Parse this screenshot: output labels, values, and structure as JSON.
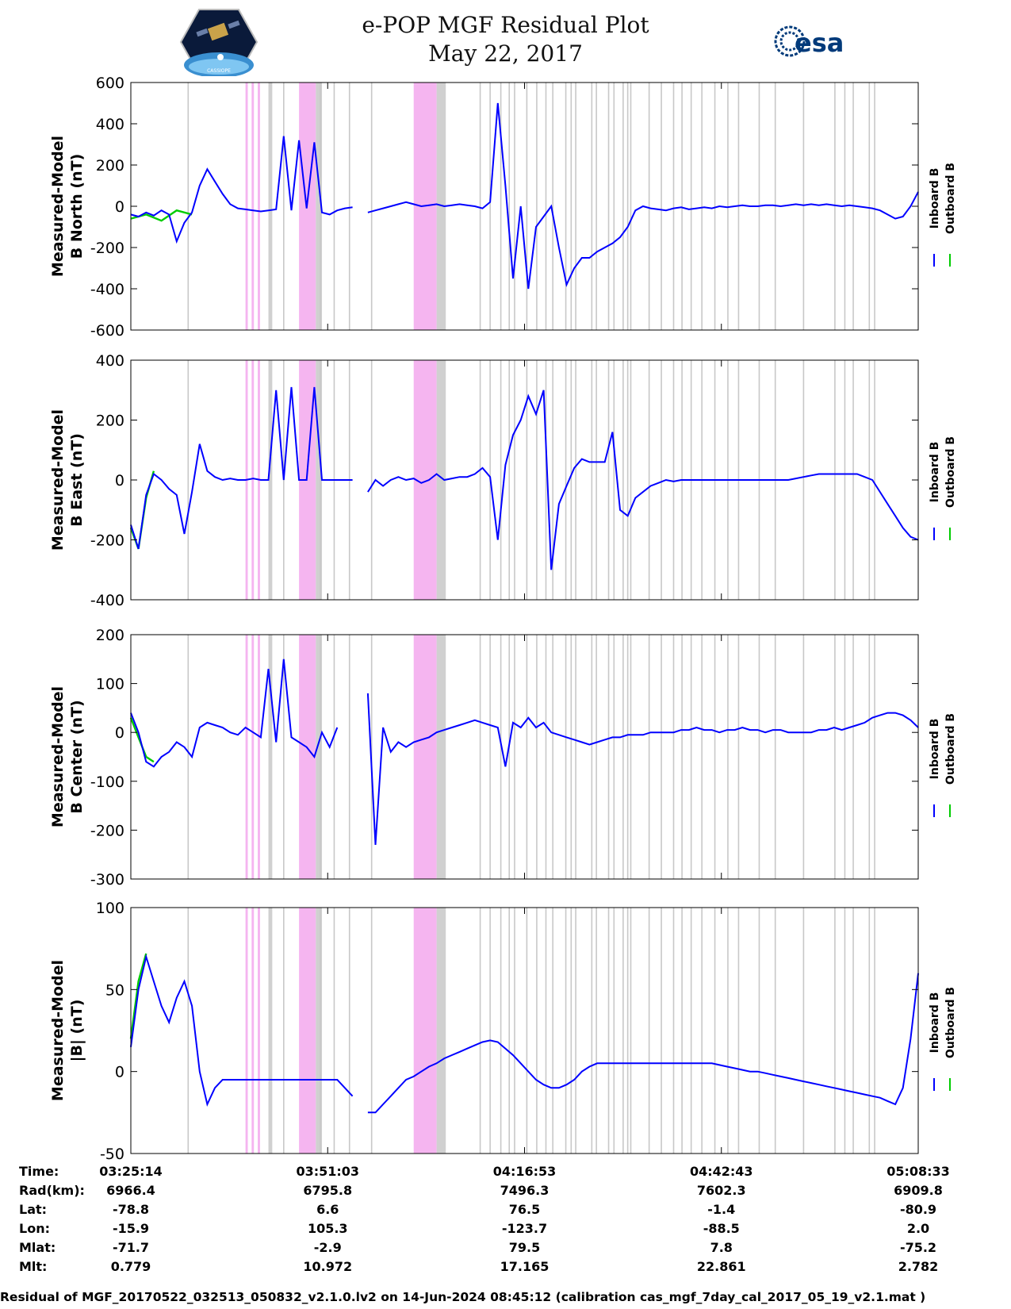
{
  "header": {
    "title": "e-POP MGF Residual Plot",
    "date": "May 22, 2017",
    "esa_logo_text": "esa",
    "cassiope_logo_text": "CASSIOPE"
  },
  "colors": {
    "inboard": "#0000ff",
    "outboard": "#00cc00",
    "pink_band": "#f5b5f0",
    "gray_band": "#d0d0d0",
    "gray_line": "#c8c8c8"
  },
  "chart_data": [
    {
      "type": "line",
      "ylabel_line1": "Measured-Model",
      "ylabel_line2": "B North (nT)",
      "ylim": [
        -600,
        600
      ],
      "yticks": [
        600,
        400,
        200,
        0,
        -200,
        -400,
        -600
      ],
      "series": [
        {
          "name": "Inboard B",
          "color": "#0000ff",
          "x": [
            0,
            1,
            2,
            3,
            4,
            5,
            6,
            7,
            8,
            9,
            10,
            11,
            12,
            13,
            14,
            15,
            16,
            17,
            18,
            19,
            20,
            21,
            22,
            23,
            24,
            25,
            26,
            27,
            28,
            29,
            30,
            31,
            32,
            33,
            34,
            35,
            36,
            37,
            38,
            39,
            40,
            41,
            42,
            43,
            44,
            45,
            46,
            47,
            48,
            49,
            50,
            51,
            52,
            53,
            54,
            55,
            56,
            57,
            58,
            59,
            60,
            61,
            62,
            63,
            64,
            65,
            66,
            67,
            68,
            69,
            70,
            71,
            72,
            73,
            74,
            75,
            76,
            77,
            78,
            79,
            80,
            81,
            82,
            83,
            84,
            85,
            86,
            87,
            88,
            89,
            90,
            91,
            92,
            93,
            94,
            95,
            96,
            97,
            98,
            99,
            100,
            101,
            102,
            103
          ],
          "y": [
            -40,
            -50,
            -30,
            -45,
            -20,
            -40,
            -170,
            -80,
            -30,
            100,
            180,
            120,
            60,
            10,
            -10,
            -15,
            -20,
            -25,
            -20,
            -15,
            340,
            -20,
            320,
            -10,
            310,
            -30,
            -40,
            -20,
            -10,
            -5,
            null,
            -30,
            -20,
            -10,
            0,
            10,
            20,
            10,
            0,
            5,
            10,
            0,
            5,
            10,
            5,
            0,
            -10,
            20,
            500,
            100,
            -350,
            0,
            -400,
            -100,
            -50,
            0,
            -200,
            -380,
            -300,
            -250,
            -250,
            -220,
            -200,
            -180,
            -150,
            -100,
            -20,
            0,
            -10,
            -15,
            -20,
            -10,
            -5,
            -15,
            -10,
            -5,
            -10,
            0,
            -5,
            0,
            5,
            0,
            0,
            5,
            5,
            0,
            5,
            10,
            5,
            10,
            5,
            10,
            5,
            0,
            5,
            0,
            -5,
            -10,
            -20,
            -40,
            -60,
            -50,
            0,
            70
          ]
        },
        {
          "name": "Outboard B",
          "color": "#00cc00",
          "x": [
            0,
            2,
            4,
            6,
            8
          ],
          "y": [
            -60,
            -40,
            -70,
            -20,
            -40
          ]
        }
      ]
    },
    {
      "type": "line",
      "ylabel_line1": "Measured-Model",
      "ylabel_line2": "B East (nT)",
      "ylim": [
        -400,
        400
      ],
      "yticks": [
        400,
        200,
        0,
        -200,
        -400
      ],
      "series": [
        {
          "name": "Inboard B",
          "color": "#0000ff",
          "x": [
            0,
            1,
            2,
            3,
            4,
            5,
            6,
            7,
            8,
            9,
            10,
            11,
            12,
            13,
            14,
            15,
            16,
            17,
            18,
            19,
            20,
            21,
            22,
            23,
            24,
            25,
            26,
            27,
            28,
            29,
            30,
            31,
            32,
            33,
            34,
            35,
            36,
            37,
            38,
            39,
            40,
            41,
            42,
            43,
            44,
            45,
            46,
            47,
            48,
            49,
            50,
            51,
            52,
            53,
            54,
            55,
            56,
            57,
            58,
            59,
            60,
            61,
            62,
            63,
            64,
            65,
            66,
            67,
            68,
            69,
            70,
            71,
            72,
            73,
            74,
            75,
            76,
            77,
            78,
            79,
            80,
            81,
            82,
            83,
            84,
            85,
            86,
            87,
            88,
            89,
            90,
            91,
            92,
            93,
            94,
            95,
            96,
            97,
            98,
            99,
            100,
            101,
            102,
            103
          ],
          "y": [
            -150,
            -230,
            -50,
            20,
            0,
            -30,
            -50,
            -180,
            -40,
            120,
            30,
            10,
            0,
            5,
            0,
            0,
            5,
            0,
            0,
            300,
            0,
            310,
            0,
            0,
            310,
            0,
            0,
            0,
            0,
            0,
            null,
            -40,
            0,
            -20,
            0,
            10,
            0,
            5,
            -10,
            0,
            20,
            0,
            5,
            10,
            10,
            20,
            40,
            10,
            -200,
            50,
            150,
            200,
            280,
            220,
            300,
            -300,
            -80,
            -20,
            40,
            70,
            60,
            60,
            60,
            160,
            -100,
            -120,
            -60,
            -40,
            -20,
            -10,
            0,
            -5,
            0,
            0,
            0,
            0,
            0,
            0,
            0,
            0,
            0,
            0,
            0,
            0,
            0,
            0,
            0,
            5,
            10,
            15,
            20,
            20,
            20,
            20,
            20,
            20,
            10,
            0,
            -40,
            -80,
            -120,
            -160,
            -190,
            -200
          ]
        },
        {
          "name": "Outboard B",
          "color": "#00cc00",
          "x": [
            0,
            1,
            2,
            3
          ],
          "y": [
            -160,
            -230,
            -60,
            30
          ]
        }
      ]
    },
    {
      "type": "line",
      "ylabel_line1": "Measured-Model",
      "ylabel_line2": "B Center (nT)",
      "ylim": [
        -300,
        200
      ],
      "yticks": [
        200,
        100,
        0,
        -100,
        -200,
        -300
      ],
      "series": [
        {
          "name": "Inboard B",
          "color": "#0000ff",
          "x": [
            0,
            1,
            2,
            3,
            4,
            5,
            6,
            7,
            8,
            9,
            10,
            11,
            12,
            13,
            14,
            15,
            16,
            17,
            18,
            19,
            20,
            21,
            22,
            23,
            24,
            25,
            26,
            27,
            28,
            29,
            30,
            31,
            32,
            33,
            34,
            35,
            36,
            37,
            38,
            39,
            40,
            41,
            42,
            43,
            44,
            45,
            46,
            47,
            48,
            49,
            50,
            51,
            52,
            53,
            54,
            55,
            56,
            57,
            58,
            59,
            60,
            61,
            62,
            63,
            64,
            65,
            66,
            67,
            68,
            69,
            70,
            71,
            72,
            73,
            74,
            75,
            76,
            77,
            78,
            79,
            80,
            81,
            82,
            83,
            84,
            85,
            86,
            87,
            88,
            89,
            90,
            91,
            92,
            93,
            94,
            95,
            96,
            97,
            98,
            99,
            100,
            101,
            102,
            103
          ],
          "y": [
            40,
            0,
            -60,
            -70,
            -50,
            -40,
            -20,
            -30,
            -50,
            10,
            20,
            15,
            10,
            0,
            -5,
            10,
            0,
            -10,
            130,
            -20,
            150,
            -10,
            -20,
            -30,
            -50,
            0,
            -30,
            10,
            null,
            null,
            null,
            80,
            -230,
            10,
            -40,
            -20,
            -30,
            -20,
            -15,
            -10,
            0,
            5,
            10,
            15,
            20,
            25,
            20,
            15,
            10,
            -70,
            20,
            10,
            30,
            10,
            20,
            0,
            -5,
            -10,
            -15,
            -20,
            -25,
            -20,
            -15,
            -10,
            -10,
            -5,
            -5,
            -5,
            0,
            0,
            0,
            0,
            5,
            5,
            10,
            5,
            5,
            0,
            5,
            5,
            10,
            5,
            5,
            0,
            5,
            5,
            0,
            0,
            0,
            0,
            5,
            5,
            10,
            5,
            10,
            15,
            20,
            30,
            35,
            40,
            40,
            35,
            25,
            10
          ]
        },
        {
          "name": "Outboard B",
          "color": "#00cc00",
          "x": [
            0,
            1,
            2,
            3
          ],
          "y": [
            30,
            -10,
            -50,
            -60
          ]
        }
      ]
    },
    {
      "type": "line",
      "ylabel_line1": "Measured-Model",
      "ylabel_line2": "|B| (nT)",
      "ylim": [
        -50,
        100
      ],
      "yticks": [
        100,
        50,
        0,
        -50
      ],
      "series": [
        {
          "name": "Inboard B",
          "color": "#0000ff",
          "x": [
            0,
            1,
            2,
            3,
            4,
            5,
            6,
            7,
            8,
            9,
            10,
            11,
            12,
            13,
            14,
            15,
            16,
            17,
            18,
            19,
            20,
            21,
            22,
            23,
            24,
            25,
            26,
            27,
            28,
            29,
            30,
            31,
            32,
            33,
            34,
            35,
            36,
            37,
            38,
            39,
            40,
            41,
            42,
            43,
            44,
            45,
            46,
            47,
            48,
            49,
            50,
            51,
            52,
            53,
            54,
            55,
            56,
            57,
            58,
            59,
            60,
            61,
            62,
            63,
            64,
            65,
            66,
            67,
            68,
            69,
            70,
            71,
            72,
            73,
            74,
            75,
            76,
            77,
            78,
            79,
            80,
            81,
            82,
            83,
            84,
            85,
            86,
            87,
            88,
            89,
            90,
            91,
            92,
            93,
            94,
            95,
            96,
            97,
            98,
            99,
            100,
            101,
            102,
            103
          ],
          "y": [
            15,
            50,
            70,
            55,
            40,
            30,
            45,
            55,
            40,
            0,
            -20,
            -10,
            -5,
            -5,
            -5,
            -5,
            -5,
            -5,
            -5,
            -5,
            -5,
            -5,
            -5,
            -5,
            -5,
            -5,
            -5,
            -5,
            -10,
            -15,
            null,
            -25,
            -25,
            -20,
            -15,
            -10,
            -5,
            -3,
            0,
            3,
            5,
            8,
            10,
            12,
            14,
            16,
            18,
            19,
            18,
            14,
            10,
            5,
            0,
            -5,
            -8,
            -10,
            -10,
            -8,
            -5,
            0,
            3,
            5,
            5,
            5,
            5,
            5,
            5,
            5,
            5,
            5,
            5,
            5,
            5,
            5,
            5,
            5,
            5,
            4,
            3,
            2,
            1,
            0,
            0,
            -1,
            -2,
            -3,
            -4,
            -5,
            -6,
            -7,
            -8,
            -9,
            -10,
            -11,
            -12,
            -13,
            -14,
            -15,
            -16,
            -18,
            -20,
            -10,
            20,
            60
          ]
        },
        {
          "name": "Outboard B",
          "color": "#00cc00",
          "x": [
            0,
            1,
            2
          ],
          "y": [
            20,
            55,
            72
          ]
        }
      ]
    }
  ],
  "legend": {
    "inboard_label": "Inboard B",
    "outboard_label": "Outboard B"
  },
  "x_axis": {
    "xlim": [
      0,
      103
    ],
    "tick_positions": [
      0,
      25.75,
      51.5,
      77.25,
      103
    ]
  },
  "info_table": {
    "labels": [
      "Time:",
      "Rad(km):",
      "Lat:",
      "Lon:",
      "Mlat:",
      "Mlt:"
    ],
    "columns": [
      [
        "03:25:14",
        "6966.4",
        "-78.8",
        "-15.9",
        "-71.7",
        "0.779"
      ],
      [
        "03:51:03",
        "6795.8",
        "6.6",
        "105.3",
        "-2.9",
        "10.972"
      ],
      [
        "04:16:53",
        "7496.3",
        "76.5",
        "-123.7",
        "79.5",
        "17.165"
      ],
      [
        "04:42:43",
        "7602.3",
        "-1.4",
        "-88.5",
        "7.8",
        "22.861"
      ],
      [
        "05:08:33",
        "6909.8",
        "-80.9",
        "2.0",
        "-75.2",
        "2.782"
      ]
    ]
  },
  "bands": {
    "pink": [
      [
        15.0,
        15.3
      ],
      [
        15.8,
        16.1
      ],
      [
        16.6,
        16.9
      ],
      [
        22.0,
        24.2
      ],
      [
        37.0,
        40.0
      ]
    ],
    "gray": [
      [
        18.0,
        18.5
      ],
      [
        24.2,
        25.0
      ],
      [
        40.0,
        41.2
      ]
    ],
    "gray_lines": [
      7.5,
      20.0,
      24.8,
      26.6,
      28.6,
      31.5,
      45.7,
      47.0,
      48.4,
      49.5,
      50.2,
      51.8,
      53.1,
      54.3,
      55.2,
      56.9,
      57.6,
      58.2,
      60.3,
      60.9,
      62.5,
      63.2,
      64.4,
      65.0,
      65.4,
      67.8,
      69.4,
      71.0,
      72.1,
      73.3,
      74.7,
      76.4,
      78.1,
      79.5,
      82.2,
      84.3,
      88.0,
      92.1,
      93.4,
      94.5,
      96.6,
      97.3
    ]
  },
  "footer": {
    "text": "Residual of MGF_20170522_032513_050832_v2.1.0.lv2 on 14-Jun-2024 08:45:12 (calibration cas_mgf_7day_cal_2017_05_19_v2.1.mat )"
  }
}
